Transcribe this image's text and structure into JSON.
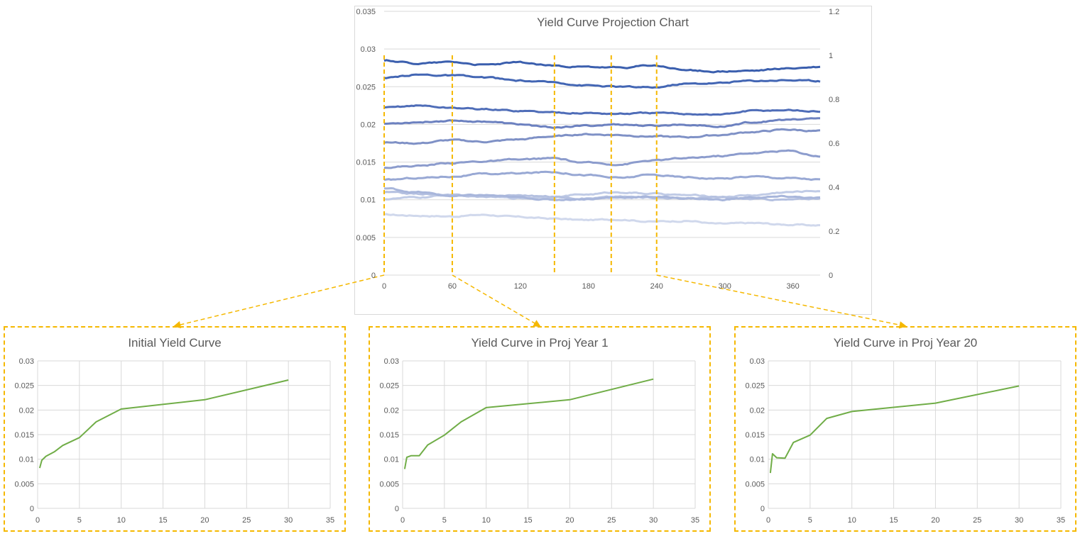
{
  "colors": {
    "highlight": "#f5b800",
    "small_line": "#70ad47",
    "grid": "#d9d9d9",
    "axis_text": "#595959",
    "title_text": "#595959"
  },
  "chart_data": [
    {
      "id": "main",
      "type": "line",
      "title": "Yield Curve Projection Chart",
      "xlabel": "",
      "ylabel": "",
      "xlim": [
        0,
        384
      ],
      "ylim": [
        0,
        0.035
      ],
      "y2lim": [
        0,
        1.2
      ],
      "x_ticks": [
        "0",
        "60",
        "120",
        "180",
        "240",
        "300",
        "360"
      ],
      "y_ticks": [
        "0",
        "0.005",
        "0.01",
        "0.015",
        "0.02",
        "0.025",
        "0.03",
        "0.035"
      ],
      "y2_ticks": [
        "0",
        "0.2",
        "0.4",
        "0.6",
        "0.8",
        "1",
        "1.2"
      ],
      "grid": "horizontal",
      "legend": "none",
      "highlight_months": [
        0,
        60,
        150,
        200,
        240
      ],
      "series": [
        {
          "color": "#d0d8ec",
          "values": [
            0.008,
            0.0079,
            0.0078,
            0.008,
            0.0077,
            0.0075,
            0.0073,
            0.0074,
            0.0071,
            0.0072,
            0.0068,
            0.0069,
            0.0067,
            0.0066
          ]
        },
        {
          "color": "#c0cbe6",
          "values": [
            0.0101,
            0.0103,
            0.0106,
            0.0104,
            0.0102,
            0.0104,
            0.0107,
            0.011,
            0.0108,
            0.0106,
            0.0104,
            0.0106,
            0.011,
            0.0112
          ]
        },
        {
          "color": "#b4c0e0",
          "values": [
            0.011,
            0.0108,
            0.0106,
            0.0104,
            0.0106,
            0.0104,
            0.0102,
            0.0104,
            0.0103,
            0.0102,
            0.0103,
            0.0101,
            0.01,
            0.0102
          ]
        },
        {
          "color": "#a8b6db",
          "values": [
            0.0115,
            0.011,
            0.0105,
            0.0106,
            0.0103,
            0.01,
            0.0101,
            0.0103,
            0.0104,
            0.0102,
            0.01,
            0.0103,
            0.0104,
            0.0102
          ]
        },
        {
          "color": "#98a8d4",
          "values": [
            0.0126,
            0.0129,
            0.0131,
            0.0134,
            0.0135,
            0.0137,
            0.0133,
            0.0129,
            0.0133,
            0.013,
            0.0128,
            0.0131,
            0.0129,
            0.0127
          ]
        },
        {
          "color": "#8c9ccd",
          "values": [
            0.0143,
            0.0145,
            0.0149,
            0.0151,
            0.0153,
            0.0155,
            0.0149,
            0.0147,
            0.0152,
            0.0155,
            0.0158,
            0.0162,
            0.0165,
            0.0158
          ]
        },
        {
          "color": "#7f91c6",
          "values": [
            0.0176,
            0.0175,
            0.0179,
            0.0177,
            0.018,
            0.0184,
            0.0187,
            0.0186,
            0.0184,
            0.0183,
            0.0186,
            0.019,
            0.0193,
            0.0191
          ]
        },
        {
          "color": "#6c81c0",
          "values": [
            0.0201,
            0.0203,
            0.0205,
            0.0204,
            0.02,
            0.0196,
            0.0198,
            0.02,
            0.0198,
            0.02,
            0.0197,
            0.0203,
            0.0206,
            0.0208
          ]
        },
        {
          "color": "#4f6db8",
          "values": [
            0.0222,
            0.0225,
            0.0222,
            0.022,
            0.0218,
            0.0216,
            0.0215,
            0.0214,
            0.0215,
            0.0214,
            0.0213,
            0.0218,
            0.0219,
            0.0217
          ]
        },
        {
          "color": "#4366b4",
          "values": [
            0.0261,
            0.0266,
            0.0265,
            0.0262,
            0.0258,
            0.0256,
            0.0252,
            0.025,
            0.0249,
            0.0254,
            0.0255,
            0.0258,
            0.0259,
            0.0257
          ]
        },
        {
          "color": "#3b5fae",
          "values": [
            0.0285,
            0.0281,
            0.0283,
            0.0279,
            0.0282,
            0.0278,
            0.0276,
            0.0275,
            0.0278,
            0.0272,
            0.027,
            0.0271,
            0.0274,
            0.0276
          ]
        }
      ]
    },
    {
      "id": "initial",
      "type": "line",
      "title": "Initial Yield Curve",
      "xlabel": "",
      "ylabel": "",
      "xlim": [
        0,
        35
      ],
      "ylim": [
        0,
        0.03
      ],
      "x_ticks": [
        "0",
        "5",
        "10",
        "15",
        "20",
        "25",
        "30",
        "35"
      ],
      "y_ticks": [
        "0",
        "0.005",
        "0.01",
        "0.015",
        "0.02",
        "0.025",
        "0.03"
      ],
      "grid": "both",
      "legend": "none",
      "x": [
        0.25,
        0.5,
        1,
        2,
        3,
        5,
        7,
        10,
        20,
        30
      ],
      "values": [
        0.0082,
        0.0098,
        0.0106,
        0.0115,
        0.0128,
        0.0144,
        0.0176,
        0.0202,
        0.0221,
        0.0261
      ]
    },
    {
      "id": "year1",
      "type": "line",
      "title": "Yield Curve in Proj Year 1",
      "xlabel": "",
      "ylabel": "",
      "xlim": [
        0,
        35
      ],
      "ylim": [
        0,
        0.03
      ],
      "x_ticks": [
        "0",
        "5",
        "10",
        "15",
        "20",
        "25",
        "30",
        "35"
      ],
      "y_ticks": [
        "0",
        "0.005",
        "0.01",
        "0.015",
        "0.02",
        "0.025",
        "0.03"
      ],
      "grid": "both",
      "legend": "none",
      "x": [
        0.25,
        0.5,
        1,
        2,
        3,
        5,
        7,
        10,
        20,
        30
      ],
      "values": [
        0.008,
        0.0104,
        0.0107,
        0.0107,
        0.0129,
        0.0149,
        0.0176,
        0.0205,
        0.0221,
        0.0263
      ]
    },
    {
      "id": "year20",
      "type": "line",
      "title": "Yield Curve in Proj Year 20",
      "xlabel": "",
      "ylabel": "",
      "xlim": [
        0,
        35
      ],
      "ylim": [
        0,
        0.03
      ],
      "x_ticks": [
        "0",
        "5",
        "10",
        "15",
        "20",
        "25",
        "30",
        "35"
      ],
      "y_ticks": [
        "0",
        "0.005",
        "0.01",
        "0.015",
        "0.02",
        "0.025",
        "0.03"
      ],
      "grid": "both",
      "legend": "none",
      "x": [
        0.25,
        0.5,
        1,
        2,
        3,
        5,
        7,
        10,
        20,
        30
      ],
      "values": [
        0.0072,
        0.0111,
        0.0103,
        0.0102,
        0.0134,
        0.0149,
        0.0183,
        0.0197,
        0.0214,
        0.0249
      ]
    }
  ]
}
